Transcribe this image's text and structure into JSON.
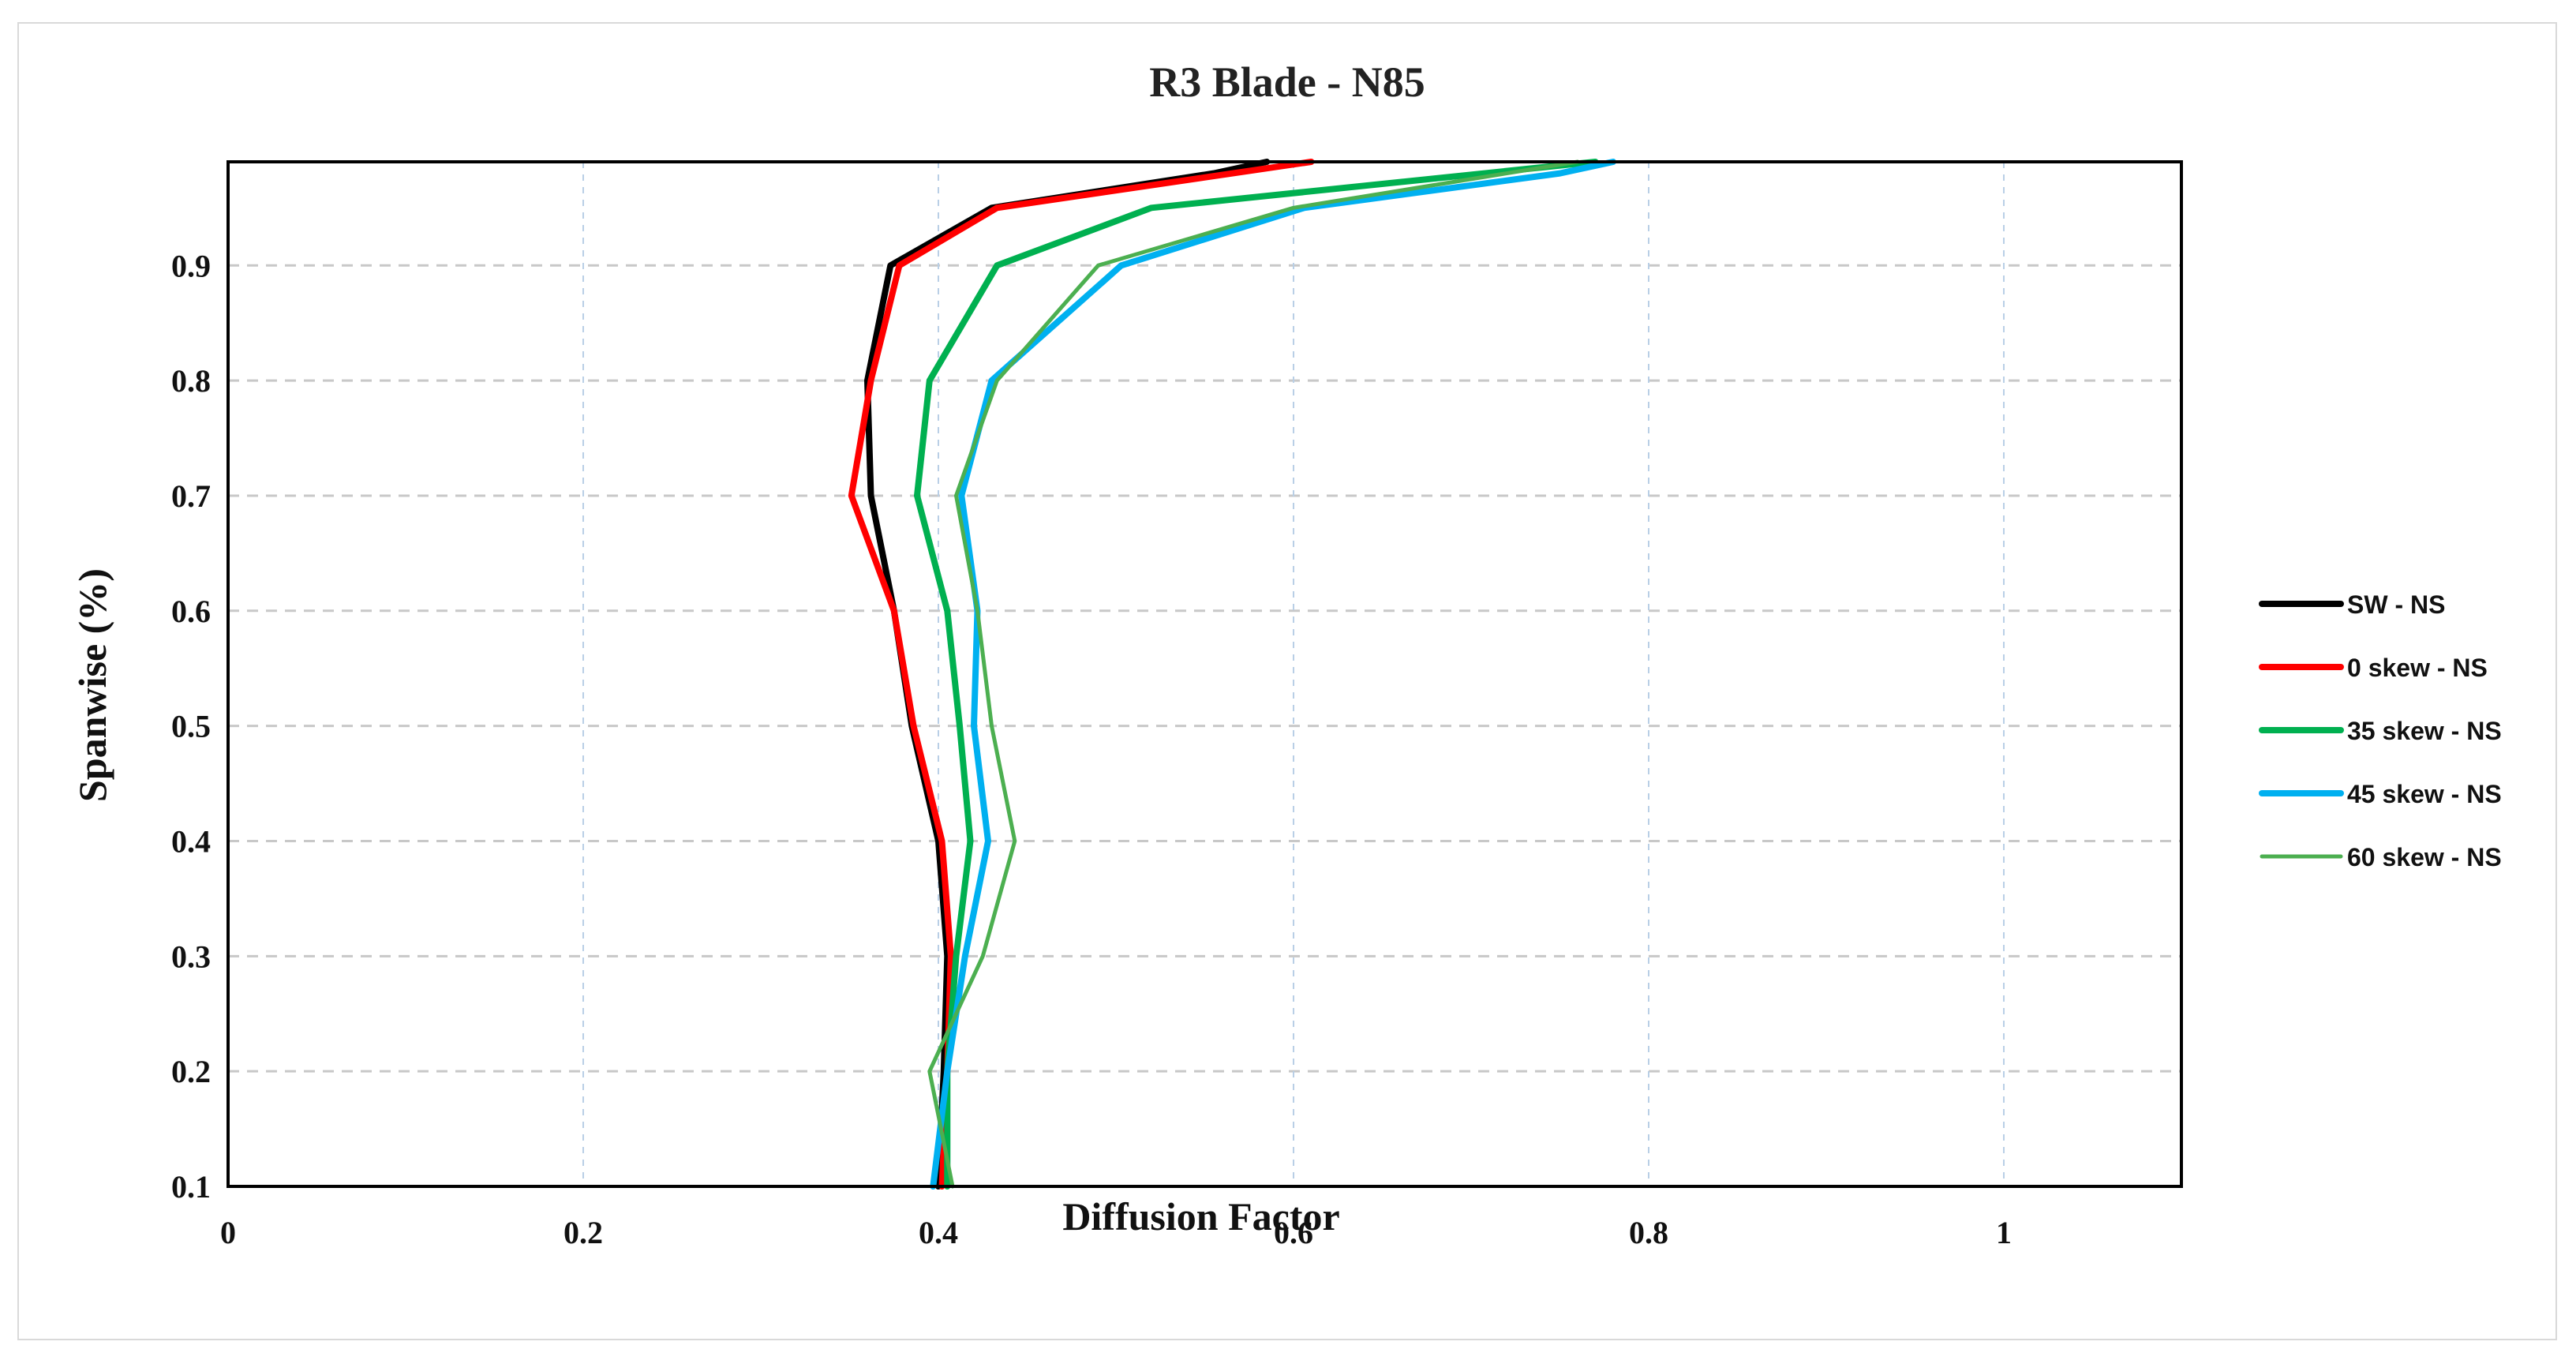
{
  "chart_data": {
    "type": "line",
    "title": "R3 Blade - N85",
    "xlabel": "Diffusion Factor",
    "ylabel": "Spanwise (%)",
    "xlim": [
      0,
      1.1
    ],
    "ylim": [
      0.1,
      0.99
    ],
    "xticks": [
      0,
      0.2,
      0.4,
      0.6,
      0.8,
      1
    ],
    "xtick_labels": [
      "0",
      "0.2",
      "0.4",
      "0.6",
      "0.8",
      "1"
    ],
    "yticks": [
      0.1,
      0.2,
      0.3,
      0.4,
      0.5,
      0.6,
      0.7,
      0.8,
      0.9
    ],
    "ytick_labels": [
      "0.1",
      "0.2",
      "0.3",
      "0.4",
      "0.5",
      "0.6",
      "0.7",
      "0.8",
      "0.9"
    ],
    "grid": true,
    "legend_position": "right",
    "series": [
      {
        "name": "SW - NS",
        "color": "#000000",
        "line_width": "thick",
        "x": [
          0.4,
          0.403,
          0.405,
          0.4,
          0.385,
          0.375,
          0.362,
          0.36,
          0.373,
          0.43,
          0.555,
          0.585
        ],
        "y": [
          0.1,
          0.2,
          0.3,
          0.4,
          0.5,
          0.6,
          0.7,
          0.8,
          0.9,
          0.95,
          0.98,
          0.99
        ]
      },
      {
        "name": "0 skew - NS",
        "color": "#ff0000",
        "line_width": "thick",
        "x": [
          0.402,
          0.405,
          0.407,
          0.402,
          0.386,
          0.375,
          0.351,
          0.362,
          0.378,
          0.433,
          0.61
        ],
        "y": [
          0.1,
          0.2,
          0.3,
          0.4,
          0.5,
          0.6,
          0.7,
          0.8,
          0.9,
          0.95,
          0.99
        ]
      },
      {
        "name": "35 skew - NS",
        "color": "#00b050",
        "line_width": "thick",
        "x": [
          0.405,
          0.405,
          0.41,
          0.418,
          0.412,
          0.405,
          0.388,
          0.395,
          0.433,
          0.52,
          0.77
        ],
        "y": [
          0.1,
          0.2,
          0.3,
          0.4,
          0.5,
          0.6,
          0.7,
          0.8,
          0.9,
          0.95,
          0.99
        ]
      },
      {
        "name": "45 skew - NS",
        "color": "#00b0f0",
        "line_width": "thick",
        "x": [
          0.397,
          0.405,
          0.415,
          0.428,
          0.42,
          0.422,
          0.413,
          0.43,
          0.503,
          0.606,
          0.75,
          0.78
        ],
        "y": [
          0.1,
          0.2,
          0.3,
          0.4,
          0.5,
          0.6,
          0.7,
          0.8,
          0.9,
          0.95,
          0.98,
          0.99
        ]
      },
      {
        "name": "60 skew - NS",
        "color": "#4caf50",
        "line_width": "thin",
        "x": [
          0.408,
          0.395,
          0.425,
          0.443,
          0.43,
          0.422,
          0.41,
          0.433,
          0.49,
          0.6,
          0.76
        ],
        "y": [
          0.1,
          0.2,
          0.3,
          0.4,
          0.5,
          0.6,
          0.7,
          0.8,
          0.9,
          0.95,
          0.99
        ]
      }
    ]
  }
}
